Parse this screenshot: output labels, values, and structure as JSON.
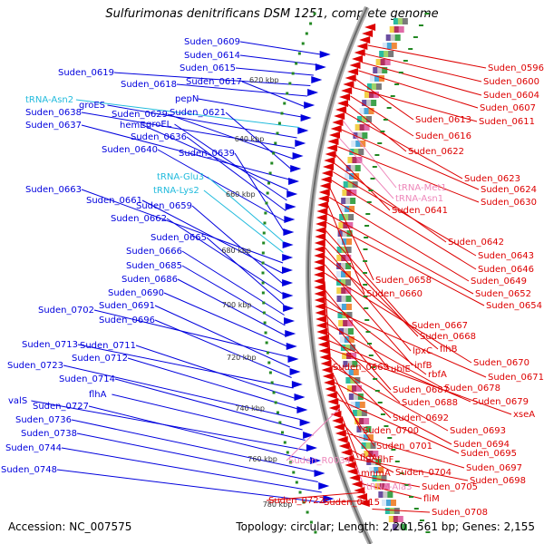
{
  "title": "Sulfurimonas denitrificans DSM 1251, complete genome",
  "footer": {
    "accession": "Accession: NC_007575",
    "summary": "Topology: circular; Length: 2,201,561 bp; Genes: 2,155"
  },
  "colors": {
    "forward_gene": "#0000dd",
    "reverse_gene": "#dd0000",
    "trna_forward": "#22bbdd",
    "trna_reverse": "#ee88bb",
    "backbone": "#999999",
    "tick_dot": "#228822"
  },
  "kbp_ticks": [
    "620 kbp",
    "640 kbp",
    "660 kbp",
    "680 kbp",
    "700 kbp",
    "720 kbp",
    "740 kbp",
    "760 kbp",
    "780 kbp"
  ],
  "left_labels": [
    {
      "text": "Suden_0609",
      "kind": "gene"
    },
    {
      "text": "Suden_0614",
      "kind": "gene"
    },
    {
      "text": "Suden_0615",
      "kind": "gene"
    },
    {
      "text": "Suden_0619",
      "kind": "gene"
    },
    {
      "text": "Suden_0618",
      "kind": "gene"
    },
    {
      "text": "Suden_0617",
      "kind": "gene"
    },
    {
      "text": "pepN",
      "kind": "gene"
    },
    {
      "text": "tRNA-Asn2",
      "kind": "trna"
    },
    {
      "text": "groES",
      "kind": "gene"
    },
    {
      "text": "Suden_0638",
      "kind": "gene"
    },
    {
      "text": "Suden_0629",
      "kind": "gene"
    },
    {
      "text": "Suden_0621",
      "kind": "gene"
    },
    {
      "text": "Suden_0637",
      "kind": "gene"
    },
    {
      "text": "hemE",
      "kind": "gene"
    },
    {
      "text": "groEL",
      "kind": "gene"
    },
    {
      "text": "Suden_0636",
      "kind": "gene"
    },
    {
      "text": "Suden_0640",
      "kind": "gene"
    },
    {
      "text": "Suden_0639",
      "kind": "gene"
    },
    {
      "text": "tRNA-Glu3",
      "kind": "trna"
    },
    {
      "text": "tRNA-Lys2",
      "kind": "trna"
    },
    {
      "text": "Suden_0663",
      "kind": "gene"
    },
    {
      "text": "Suden_0661",
      "kind": "gene"
    },
    {
      "text": "Suden_0659",
      "kind": "gene"
    },
    {
      "text": "Suden_0662",
      "kind": "gene"
    },
    {
      "text": "Suden_0665",
      "kind": "gene"
    },
    {
      "text": "Suden_0666",
      "kind": "gene"
    },
    {
      "text": "Suden_0685",
      "kind": "gene"
    },
    {
      "text": "Suden_0686",
      "kind": "gene"
    },
    {
      "text": "Suden_0690",
      "kind": "gene"
    },
    {
      "text": "Suden_0702",
      "kind": "gene"
    },
    {
      "text": "Suden_0691",
      "kind": "gene"
    },
    {
      "text": "Suden_0696",
      "kind": "gene"
    },
    {
      "text": "Suden_0713",
      "kind": "gene"
    },
    {
      "text": "Suden_0711",
      "kind": "gene"
    },
    {
      "text": "Suden_0712",
      "kind": "gene"
    },
    {
      "text": "Suden_0723",
      "kind": "gene"
    },
    {
      "text": "Suden_0714",
      "kind": "gene"
    },
    {
      "text": "flhA",
      "kind": "gene"
    },
    {
      "text": "valS",
      "kind": "gene"
    },
    {
      "text": "Suden_0727",
      "kind": "gene"
    },
    {
      "text": "Suden_0736",
      "kind": "gene"
    },
    {
      "text": "Suden_0738",
      "kind": "gene"
    },
    {
      "text": "Suden_0744",
      "kind": "gene"
    },
    {
      "text": "Suden_0748",
      "kind": "gene"
    }
  ],
  "right_labels": [
    {
      "text": "Suden_0596",
      "kind": "gene"
    },
    {
      "text": "Suden_0600",
      "kind": "gene"
    },
    {
      "text": "Suden_0604",
      "kind": "gene"
    },
    {
      "text": "Suden_0607",
      "kind": "gene"
    },
    {
      "text": "Suden_0613",
      "kind": "gene"
    },
    {
      "text": "Suden_0611",
      "kind": "gene"
    },
    {
      "text": "Suden_0616",
      "kind": "gene"
    },
    {
      "text": "Suden_0622",
      "kind": "gene"
    },
    {
      "text": "Suden_0623",
      "kind": "gene"
    },
    {
      "text": "tRNA-Met1",
      "kind": "trna"
    },
    {
      "text": "Suden_0624",
      "kind": "gene"
    },
    {
      "text": "tRNA-Asn1",
      "kind": "trna"
    },
    {
      "text": "Suden_0630",
      "kind": "gene"
    },
    {
      "text": "Suden_0641",
      "kind": "gene"
    },
    {
      "text": "Suden_0642",
      "kind": "gene"
    },
    {
      "text": "Suden_0643",
      "kind": "gene"
    },
    {
      "text": "Suden_0646",
      "kind": "gene"
    },
    {
      "text": "Suden_0658",
      "kind": "gene"
    },
    {
      "text": "Suden_0649",
      "kind": "gene"
    },
    {
      "text": "Suden_0660",
      "kind": "gene"
    },
    {
      "text": "Suden_0652",
      "kind": "gene"
    },
    {
      "text": "Suden_0654",
      "kind": "gene"
    },
    {
      "text": "Suden_0667",
      "kind": "gene"
    },
    {
      "text": "Suden_0668",
      "kind": "gene"
    },
    {
      "text": "lpxC",
      "kind": "gene"
    },
    {
      "text": "flhB",
      "kind": "gene"
    },
    {
      "text": "infB",
      "kind": "gene"
    },
    {
      "text": "Suden_0670",
      "kind": "gene"
    },
    {
      "text": "Suden_0669",
      "kind": "gene"
    },
    {
      "text": "ubiE",
      "kind": "gene"
    },
    {
      "text": "rbfA",
      "kind": "gene"
    },
    {
      "text": "Suden_0671",
      "kind": "gene"
    },
    {
      "text": "Suden_0687",
      "kind": "gene"
    },
    {
      "text": "Suden_0678",
      "kind": "gene"
    },
    {
      "text": "Suden_0688",
      "kind": "gene"
    },
    {
      "text": "Suden_0679",
      "kind": "gene"
    },
    {
      "text": "xseA",
      "kind": "gene"
    },
    {
      "text": "Suden_0692",
      "kind": "gene"
    },
    {
      "text": "Suden_0693",
      "kind": "gene"
    },
    {
      "text": "Suden_0700",
      "kind": "gene"
    },
    {
      "text": "Suden_0694",
      "kind": "gene"
    },
    {
      "text": "Suden_0701",
      "kind": "gene"
    },
    {
      "text": "Suden_0695",
      "kind": "gene"
    },
    {
      "text": "Suden_R0034",
      "kind": "trna"
    },
    {
      "text": "flgA",
      "kind": "gene"
    },
    {
      "text": "flhF",
      "kind": "gene"
    },
    {
      "text": "Suden_0697",
      "kind": "gene"
    },
    {
      "text": "mnmA",
      "kind": "gene"
    },
    {
      "text": "Suden_0704",
      "kind": "gene"
    },
    {
      "text": "Suden_0698",
      "kind": "gene"
    },
    {
      "text": "tRNA-Ala3",
      "kind": "trna"
    },
    {
      "text": "Suden_0705",
      "kind": "gene"
    },
    {
      "text": "fliM",
      "kind": "gene"
    },
    {
      "text": "Suden_0722",
      "kind": "gene"
    },
    {
      "text": "Suden_0715",
      "kind": "gene"
    },
    {
      "text": "Suden_0708",
      "kind": "gene"
    }
  ]
}
